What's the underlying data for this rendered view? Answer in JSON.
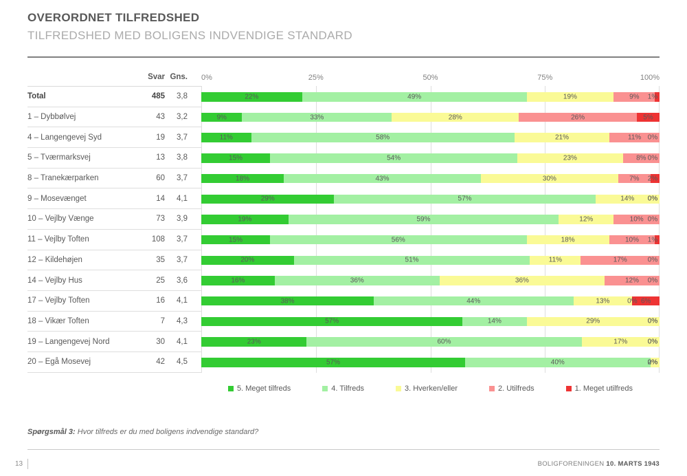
{
  "header": {
    "title": "OVERORDNET TILFREDSHED",
    "subtitle": "TILFREDSHED MED BOLIGENS INDVENDIGE STANDARD"
  },
  "table": {
    "col_svar": "Svar",
    "col_gns": "Gns.",
    "axis_ticks": [
      "0%",
      "25%",
      "50%",
      "75%",
      "100%"
    ],
    "rows": [
      {
        "label": "Total",
        "svar": "485",
        "gns": "3,8",
        "bold": true
      },
      {
        "label": "1 – Dybbølvej",
        "svar": "43",
        "gns": "3,2",
        "bold": false
      },
      {
        "label": "4 – Langengevej Syd",
        "svar": "19",
        "gns": "3,7",
        "bold": false
      },
      {
        "label": "5 – Tværmarksvej",
        "svar": "13",
        "gns": "3,8",
        "bold": false
      },
      {
        "label": "8 – Tranekærparken",
        "svar": "60",
        "gns": "3,7",
        "bold": false
      },
      {
        "label": "9 – Mosevænget",
        "svar": "14",
        "gns": "4,1",
        "bold": false
      },
      {
        "label": "10 – Vejlby Vænge",
        "svar": "73",
        "gns": "3,9",
        "bold": false
      },
      {
        "label": "11 – Vejlby Toften",
        "svar": "108",
        "gns": "3,7",
        "bold": false
      },
      {
        "label": "12 – Kildehøjen",
        "svar": "35",
        "gns": "3,7",
        "bold": false
      },
      {
        "label": "14 – Vejlby Hus",
        "svar": "25",
        "gns": "3,6",
        "bold": false
      },
      {
        "label": "17 – Vejlby Toften",
        "svar": "16",
        "gns": "4,1",
        "bold": false
      },
      {
        "label": "18 – Vikær Toften",
        "svar": "7",
        "gns": "4,3",
        "bold": false
      },
      {
        "label": "19 – Langengevej Nord",
        "svar": "30",
        "gns": "4,1",
        "bold": false
      },
      {
        "label": "20 – Egå Mosevej",
        "svar": "42",
        "gns": "4,5",
        "bold": false
      }
    ]
  },
  "chart_data": {
    "type": "bar",
    "stacked": true,
    "orientation": "horizontal",
    "title": "OVERORDNET TILFREDSHED — TILFREDSHED MED BOLIGENS INDVENDIGE STANDARD",
    "xlabel": "",
    "ylabel": "",
    "xlim": [
      0,
      100
    ],
    "x_ticks": [
      "0%",
      "25%",
      "50%",
      "75%",
      "100%"
    ],
    "grid": true,
    "legend_position": "bottom",
    "categories": [
      "Total",
      "1 – Dybbølvej",
      "4 – Langengevej Syd",
      "5 – Tværmarksvej",
      "8 – Tranekærparken",
      "9 – Mosevænget",
      "10 – Vejlby Vænge",
      "11 – Vejlby Toften",
      "12 – Kildehøjen",
      "14 – Vejlby Hus",
      "17 – Vejlby Toften",
      "18 – Vikær Toften",
      "19 – Langengevej Nord",
      "20 – Egå Mosevej"
    ],
    "svar": [
      485,
      43,
      19,
      13,
      60,
      14,
      73,
      108,
      35,
      25,
      16,
      7,
      30,
      42
    ],
    "gns": [
      "3,8",
      "3,2",
      "3,7",
      "3,8",
      "3,7",
      "4,1",
      "3,9",
      "3,7",
      "3,7",
      "3,6",
      "4,1",
      "4,3",
      "4,1",
      "4,5"
    ],
    "series": [
      {
        "name": "5. Meget tilfreds",
        "color": "#33CC33",
        "values": [
          22,
          9,
          11,
          15,
          18,
          29,
          19,
          15,
          20,
          16,
          38,
          57,
          23,
          57
        ]
      },
      {
        "name": "4. Tilfreds",
        "color": "#A3F0A3",
        "values": [
          49,
          33,
          58,
          54,
          43,
          57,
          59,
          56,
          51,
          36,
          44,
          14,
          60,
          40
        ]
      },
      {
        "name": "3. Hverken/eller",
        "color": "#FAFA96",
        "values": [
          19,
          28,
          21,
          23,
          30,
          14,
          12,
          18,
          11,
          36,
          13,
          29,
          17,
          2
        ]
      },
      {
        "name": "2. Utilfreds",
        "color": "#FA9191",
        "values": [
          9,
          26,
          11,
          8,
          7,
          0,
          10,
          10,
          17,
          12,
          0,
          0,
          0,
          0
        ]
      },
      {
        "name": "1. Meget utilfreds",
        "color": "#EE3333",
        "values": [
          1,
          5,
          0,
          0,
          2,
          0,
          0,
          1,
          0,
          0,
          6,
          0,
          0,
          0
        ]
      }
    ]
  },
  "footnote": {
    "prefix": "Spørgsmål 3:",
    "text": " Hvor tilfreds er du med boligens indvendige standard?"
  },
  "footer": {
    "page": "13",
    "org": "BOLIGFORENINGEN ",
    "date": "10. MARTS 1943"
  }
}
